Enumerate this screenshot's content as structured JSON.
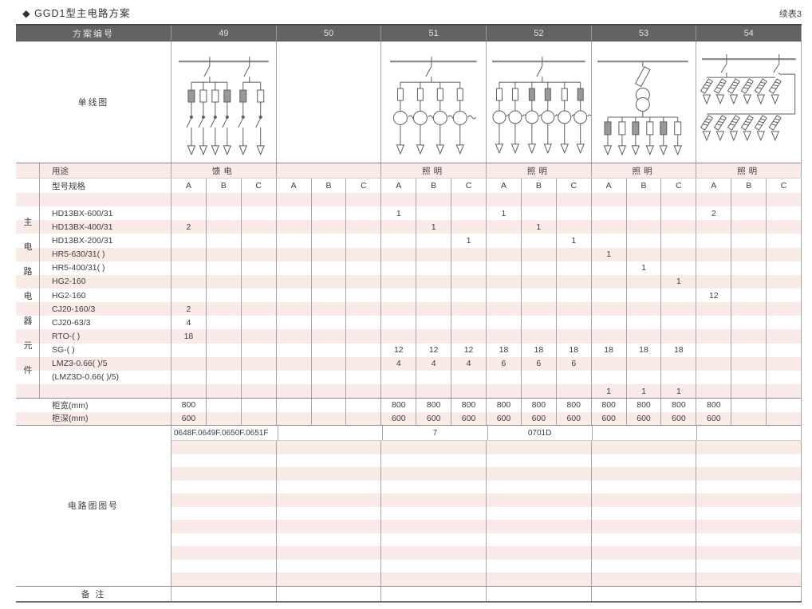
{
  "page": {
    "title": "◆ GGD1型主电路方案",
    "continuation": "续表3"
  },
  "table": {
    "header": {
      "label": "方案编号",
      "schemes": [
        "49",
        "50",
        "51",
        "52",
        "53",
        "54"
      ]
    },
    "diagram": {
      "label": "单线图"
    },
    "usage": {
      "label": "用途",
      "values": [
        "馈电",
        "",
        "照明",
        "照明",
        "照明",
        "照明"
      ]
    },
    "spec": {
      "label": "型号规格",
      "subcols": [
        "A",
        "B",
        "C"
      ]
    },
    "side_label": "主电路电器元件",
    "component_rows": [
      {
        "label": "",
        "v": [
          "",
          "",
          "",
          "",
          "",
          "",
          "",
          "",
          "",
          "",
          "",
          "",
          "",
          "",
          "",
          "",
          "",
          ""
        ]
      },
      {
        "label": "HD13BX-600/31",
        "v": [
          "",
          "",
          "",
          "",
          "",
          "",
          "1",
          "",
          "",
          "1",
          "",
          "",
          "",
          "",
          "",
          "2",
          "",
          ""
        ]
      },
      {
        "label": "HD13BX-400/31",
        "v": [
          "2",
          "",
          "",
          "",
          "",
          "",
          "",
          "1",
          "",
          "",
          "1",
          "",
          "",
          "",
          "",
          "",
          "",
          ""
        ]
      },
      {
        "label": "HD13BX-200/31",
        "v": [
          "",
          "",
          "",
          "",
          "",
          "",
          "",
          "",
          "1",
          "",
          "",
          "1",
          "",
          "",
          "",
          "",
          "",
          ""
        ]
      },
      {
        "label": "HR5-630/31( )",
        "v": [
          "",
          "",
          "",
          "",
          "",
          "",
          "",
          "",
          "",
          "",
          "",
          "",
          "1",
          "",
          "",
          "",
          "",
          ""
        ]
      },
      {
        "label": "HR5-400/31( )",
        "v": [
          "",
          "",
          "",
          "",
          "",
          "",
          "",
          "",
          "",
          "",
          "",
          "",
          "",
          "1",
          "",
          "",
          "",
          ""
        ]
      },
      {
        "label": "HG2-160",
        "v": [
          "",
          "",
          "",
          "",
          "",
          "",
          "",
          "",
          "",
          "",
          "",
          "",
          "",
          "",
          "1",
          "",
          "",
          ""
        ]
      },
      {
        "label": "HG2-160",
        "v": [
          "",
          "",
          "",
          "",
          "",
          "",
          "",
          "",
          "",
          "",
          "",
          "",
          "",
          "",
          "",
          "12",
          "",
          ""
        ]
      },
      {
        "label": "CJ20-160/3",
        "v": [
          "2",
          "",
          "",
          "",
          "",
          "",
          "",
          "",
          "",
          "",
          "",
          "",
          "",
          "",
          "",
          "",
          "",
          ""
        ]
      },
      {
        "label": "CJ20-63/3",
        "v": [
          "4",
          "",
          "",
          "",
          "",
          "",
          "",
          "",
          "",
          "",
          "",
          "",
          "",
          "",
          "",
          "",
          "",
          ""
        ]
      },
      {
        "label": "RTO-( )",
        "v": [
          "18",
          "",
          "",
          "",
          "",
          "",
          "",
          "",
          "",
          "",
          "",
          "",
          "",
          "",
          "",
          "",
          "",
          ""
        ]
      },
      {
        "label": "SG-( )",
        "v": [
          "",
          "",
          "",
          "",
          "",
          "",
          "12",
          "12",
          "12",
          "18",
          "18",
          "18",
          "18",
          "18",
          "18",
          "",
          "",
          ""
        ]
      },
      {
        "label": "LMZ3-0.66( )/5",
        "v": [
          "",
          "",
          "",
          "",
          "",
          "",
          "4",
          "4",
          "4",
          "6",
          "6",
          "6",
          "",
          "",
          "",
          "",
          "",
          ""
        ]
      },
      {
        "label": "(LMZ3D-0.66( )/5)",
        "v": [
          "",
          "",
          "",
          "",
          "",
          "",
          "",
          "",
          "",
          "",
          "",
          "",
          "",
          "",
          "",
          "",
          "",
          ""
        ]
      },
      {
        "label": "",
        "v": [
          "",
          "",
          "",
          "",
          "",
          "",
          "",
          "",
          "",
          "",
          "",
          "",
          "1",
          "1",
          "1",
          "",
          "",
          ""
        ]
      }
    ],
    "cabinet_width": {
      "label": "柜宽(mm)",
      "v": [
        "800",
        "",
        "",
        "",
        "",
        "",
        "800",
        "800",
        "800",
        "800",
        "800",
        "800",
        "800",
        "800",
        "800",
        "800",
        "",
        ""
      ]
    },
    "cabinet_depth": {
      "label": "柜深(mm)",
      "v": [
        "600",
        "",
        "",
        "",
        "",
        "",
        "600",
        "600",
        "600",
        "600",
        "600",
        "600",
        "600",
        "600",
        "600",
        "600",
        "",
        ""
      ]
    },
    "circuit_diagram_no": {
      "label": "电路图图号",
      "first_row": [
        "0648F.0649F.0650F.0651F",
        "",
        "7",
        "0701D",
        "",
        ""
      ],
      "blank_row_count": 11
    },
    "remark": {
      "label": "备 注",
      "values": [
        "",
        "",
        "",
        "",
        "",
        ""
      ]
    }
  }
}
